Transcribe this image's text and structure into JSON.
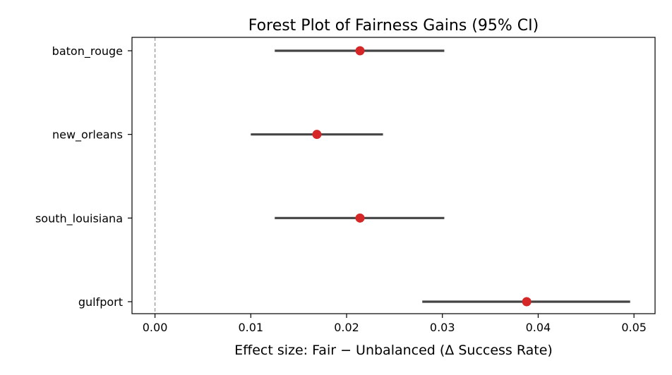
{
  "chart_data": {
    "type": "scatter",
    "title": "Forest Plot of Fairness Gains (95% CI)",
    "xlabel": "Effect size: Fair − Unbalanced (Δ Success Rate)",
    "ylabel": "",
    "xlim": [
      -0.0024,
      0.0522
    ],
    "x_ticks": [
      0.0,
      0.01,
      0.02,
      0.03,
      0.04,
      0.05
    ],
    "x_tick_labels": [
      "0.00",
      "0.01",
      "0.02",
      "0.03",
      "0.04",
      "0.05"
    ],
    "reference_line": 0,
    "grid": false,
    "legend": "none",
    "categories": [
      "baton_rouge",
      "new_orleans",
      "south_louisiana",
      "gulfport"
    ],
    "estimates": [
      0.0214,
      0.0169,
      0.0214,
      0.0388
    ],
    "ci_lower": [
      0.0125,
      0.01,
      0.0125,
      0.0279
    ],
    "ci_upper": [
      0.0302,
      0.0238,
      0.0302,
      0.0496
    ],
    "colors": {
      "point": "#d62728",
      "ci_line": "#444444",
      "reference_line": "#999999",
      "axis": "#000000"
    }
  }
}
